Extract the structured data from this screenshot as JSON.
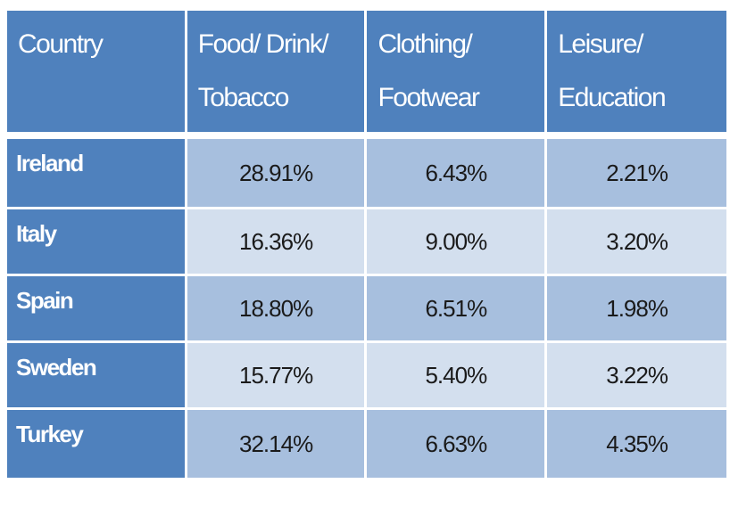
{
  "table": {
    "headers": [
      [
        "Country"
      ],
      [
        "Food/ Drink/",
        "Tobacco"
      ],
      [
        "Clothing/",
        "Footwear"
      ],
      [
        "Leisure/",
        "Education"
      ]
    ],
    "rows": [
      {
        "country": "Ireland",
        "values": [
          "28.91%",
          "6.43%",
          "2.21%"
        ]
      },
      {
        "country": "Italy",
        "values": [
          "16.36%",
          "9.00%",
          "3.20%"
        ]
      },
      {
        "country": "Spain",
        "values": [
          "18.80%",
          "6.51%",
          "1.98%"
        ]
      },
      {
        "country": "Sweden",
        "values": [
          "15.77%",
          "5.40%",
          "3.22%"
        ]
      },
      {
        "country": "Turkey",
        "values": [
          "32.14%",
          "6.63%",
          "4.35%"
        ]
      }
    ]
  },
  "colors": {
    "header_bg": "#4f81bd",
    "row_dark": "#a7bfde",
    "row_light": "#d3dfee",
    "header_text": "#ffffff"
  }
}
